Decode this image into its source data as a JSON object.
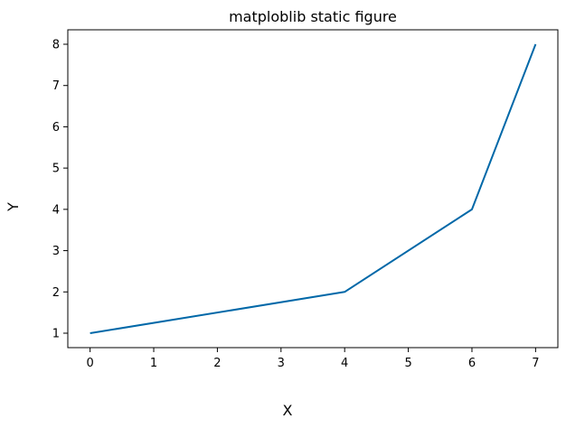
{
  "chart_data": {
    "type": "line",
    "title": "matploblib static figure",
    "xlabel": "X",
    "ylabel": "Y",
    "x": [
      0,
      4,
      6,
      7
    ],
    "series": [
      {
        "values": [
          1,
          2,
          4,
          8
        ],
        "color": "#0068a8"
      }
    ],
    "xlim": [
      -0.35,
      7.35
    ],
    "ylim": [
      0.65,
      8.35
    ],
    "xticks": [
      0,
      1,
      2,
      3,
      4,
      5,
      6,
      7
    ],
    "yticks": [
      1,
      2,
      3,
      4,
      5,
      6,
      7,
      8
    ],
    "xtick_labels": [
      "0",
      "1",
      "2",
      "3",
      "4",
      "5",
      "6",
      "7"
    ],
    "ytick_labels": [
      "1",
      "2",
      "3",
      "4",
      "5",
      "6",
      "7",
      "8"
    ],
    "grid": false,
    "legend": "none"
  }
}
